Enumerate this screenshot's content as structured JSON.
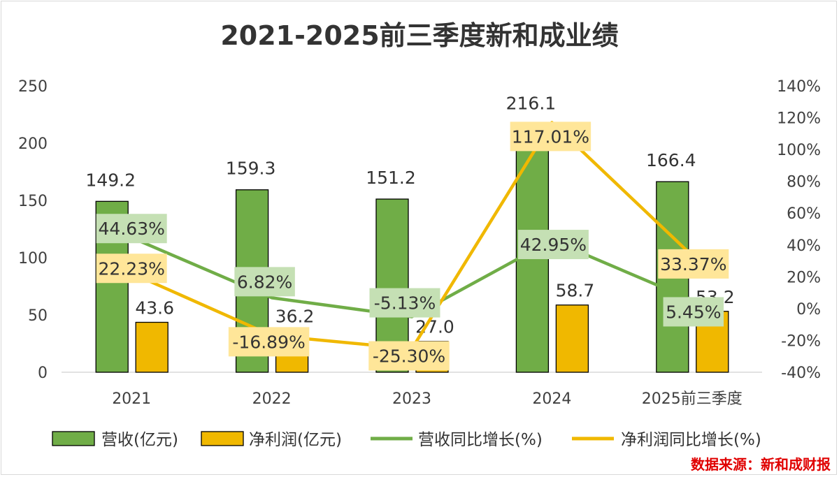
{
  "chart_data": {
    "type": "bar+line",
    "title": "2021-2025前三季度新和成业绩",
    "categories": [
      "2021",
      "2022",
      "2023",
      "2024",
      "2025前三季度"
    ],
    "bar_series": [
      {
        "name": "营收(亿元)",
        "values": [
          149.2,
          159.3,
          151.2,
          216.1,
          166.4
        ],
        "labels": [
          "149.2",
          "159.3",
          "151.2",
          "216.1",
          "166.4"
        ],
        "color": "#70ad47"
      },
      {
        "name": "净利润(亿元)",
        "values": [
          43.6,
          36.2,
          27.0,
          58.7,
          53.2
        ],
        "labels": [
          "43.6",
          "36.2",
          "27.0",
          "58.7",
          "53.2"
        ],
        "color": "#f0b800"
      }
    ],
    "line_series": [
      {
        "name": "营收同比增长(%)",
        "values": [
          44.63,
          6.82,
          -5.13,
          42.95,
          5.45
        ],
        "labels": [
          "44.63%",
          "6.82%",
          "-5.13%",
          "42.95%",
          "5.45%"
        ],
        "color": "#70ad47",
        "label_bg": "#c5e0b4"
      },
      {
        "name": "净利润同比增长(%)",
        "values": [
          22.23,
          -16.89,
          -25.3,
          117.01,
          33.37
        ],
        "labels": [
          "22.23%",
          "-16.89%",
          "-25.30%",
          "117.01%",
          "33.37%"
        ],
        "color": "#f0b800",
        "label_bg": "#ffe699"
      }
    ],
    "y_left": {
      "min": 0,
      "max": 250,
      "ticks": [
        "250",
        "200",
        "150",
        "100",
        "50",
        "0"
      ],
      "tick_values": [
        250,
        200,
        150,
        100,
        50,
        0
      ]
    },
    "y_right": {
      "min": -40,
      "max": 140,
      "ticks": [
        "140%",
        "120%",
        "100%",
        "80%",
        "60%",
        "40%",
        "20%",
        "0%",
        "-20%",
        "-40%"
      ],
      "tick_values": [
        140,
        120,
        100,
        80,
        60,
        40,
        20,
        0,
        -20,
        -40
      ]
    },
    "legend": {
      "position": "bottom",
      "items": [
        "营收(亿元)",
        "净利润(亿元)",
        "营收同比增长(%)",
        "净利润同比增长(%)"
      ]
    },
    "source": "数据来源：新和成财报"
  }
}
